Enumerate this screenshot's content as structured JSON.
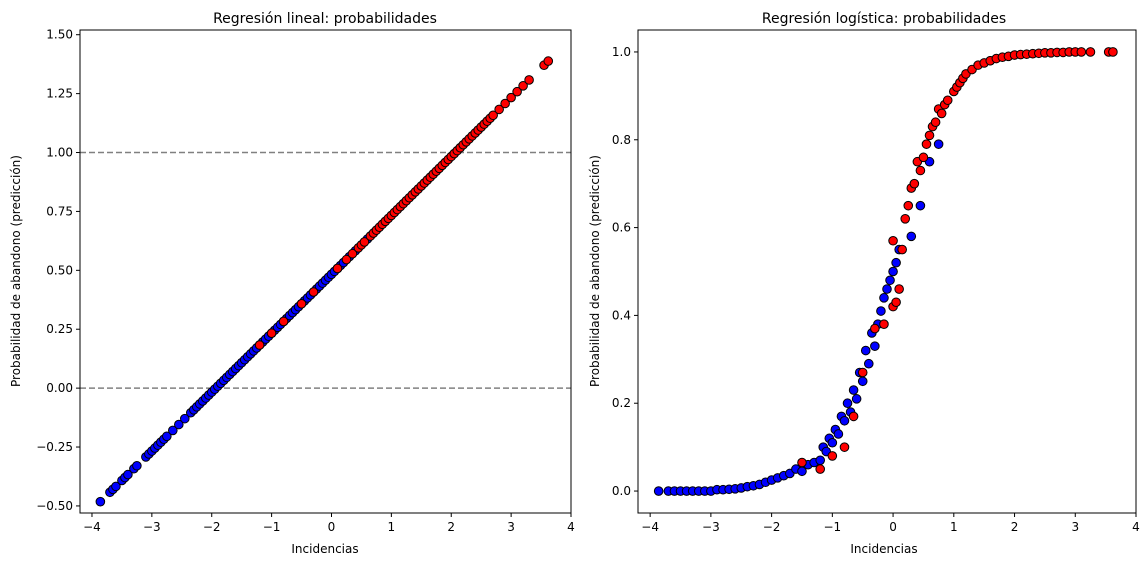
{
  "chart_data": [
    {
      "type": "scatter",
      "title": "Regresión lineal: probabilidades",
      "xlabel": "Incidencias",
      "ylabel": "Probabilidad de abandono (predicción)",
      "xlim": [
        -4.2,
        4.0
      ],
      "ylim": [
        -0.53,
        1.52
      ],
      "xticks": [
        -4,
        -3,
        -2,
        -1,
        0,
        1,
        2,
        3,
        4
      ],
      "xtick_labels": [
        "−4",
        "−3",
        "−2",
        "−1",
        "0",
        "1",
        "2",
        "3",
        "4"
      ],
      "yticks": [
        -0.5,
        -0.25,
        0.0,
        0.25,
        0.5,
        0.75,
        1.0,
        1.25,
        1.5
      ],
      "ytick_labels": [
        "−0.50",
        "−0.25",
        "0.00",
        "0.25",
        "0.50",
        "0.75",
        "1.00",
        "1.25",
        "1.50"
      ],
      "reference_lines_y": [
        0.0,
        1.0
      ],
      "model": {
        "intercept": 0.483,
        "slope": 0.25
      },
      "grid": false,
      "colors": {
        "red": "#ff0000",
        "blue": "#0000ff",
        "edge": "#000000",
        "reference": "#808080"
      },
      "series": [
        {
          "color": "blue",
          "x": [
            -3.86,
            -3.7,
            -3.65,
            -3.6,
            -3.5,
            -3.45,
            -3.4,
            -3.3,
            -3.25,
            -3.1,
            -3.05,
            -3.0,
            -2.95,
            -2.9,
            -2.85,
            -2.8,
            -2.75,
            -2.65,
            -2.55,
            -2.45,
            -2.35,
            -2.3,
            -2.25,
            -2.2,
            -2.15,
            -2.1,
            -2.05,
            -2.0,
            -1.95,
            -1.9,
            -1.85,
            -1.8,
            -1.75,
            -1.7,
            -1.65,
            -1.6,
            -1.55,
            -1.5,
            -1.45,
            -1.4,
            -1.35,
            -1.3,
            -1.25,
            -1.2,
            -1.15,
            -1.1,
            -1.05,
            -1.0,
            -0.95,
            -0.9,
            -0.85,
            -0.8,
            -0.75,
            -0.7,
            -0.65,
            -0.6,
            -0.55,
            -0.5,
            -0.45,
            -0.4,
            -0.35,
            -0.3,
            -0.25,
            -0.2,
            -0.15,
            -0.1,
            -0.05,
            0.0,
            0.05,
            0.1,
            0.15,
            0.2,
            0.3,
            0.4,
            0.6
          ]
        },
        {
          "color": "red",
          "x": [
            -1.2,
            -1.0,
            -0.8,
            -0.5,
            -0.3,
            0.1,
            0.25,
            0.35,
            0.45,
            0.5,
            0.55,
            0.65,
            0.7,
            0.75,
            0.8,
            0.85,
            0.9,
            0.95,
            1.0,
            1.05,
            1.1,
            1.15,
            1.2,
            1.25,
            1.3,
            1.35,
            1.4,
            1.45,
            1.5,
            1.55,
            1.6,
            1.65,
            1.7,
            1.75,
            1.8,
            1.85,
            1.9,
            1.95,
            2.0,
            2.05,
            2.1,
            2.15,
            2.2,
            2.25,
            2.3,
            2.35,
            2.4,
            2.45,
            2.5,
            2.55,
            2.6,
            2.65,
            2.7,
            2.8,
            2.9,
            3.0,
            3.1,
            3.2,
            3.3,
            3.55,
            3.62
          ]
        }
      ]
    },
    {
      "type": "scatter",
      "title": "Regresión logística: probabilidades",
      "xlabel": "Incidencias",
      "ylabel": "Probabilidad de abandono (predicción)",
      "xlim": [
        -4.2,
        4.0
      ],
      "ylim": [
        -0.05,
        1.05
      ],
      "xticks": [
        -4,
        -3,
        -2,
        -1,
        0,
        1,
        2,
        3,
        4
      ],
      "xtick_labels": [
        "−4",
        "−3",
        "−2",
        "−1",
        "0",
        "1",
        "2",
        "3",
        "4"
      ],
      "yticks": [
        0.0,
        0.2,
        0.4,
        0.6,
        0.8,
        1.0
      ],
      "ytick_labels": [
        "0.0",
        "0.2",
        "0.4",
        "0.6",
        "0.8",
        "1.0"
      ],
      "model": {
        "center": 0.0,
        "steepness": 2.6
      },
      "grid": false,
      "colors": {
        "red": "#ff0000",
        "blue": "#0000ff",
        "edge": "#000000"
      },
      "series": [
        {
          "color": "blue",
          "points": [
            [
              -3.86,
              0.0
            ],
            [
              -3.7,
              0.0
            ],
            [
              -3.6,
              0.0
            ],
            [
              -3.5,
              0.0
            ],
            [
              -3.4,
              0.0
            ],
            [
              -3.3,
              0.0
            ],
            [
              -3.2,
              0.0
            ],
            [
              -3.1,
              0.0
            ],
            [
              -3.0,
              0.0
            ],
            [
              -2.9,
              0.003
            ],
            [
              -2.8,
              0.003
            ],
            [
              -2.7,
              0.004
            ],
            [
              -2.6,
              0.005
            ],
            [
              -2.5,
              0.007
            ],
            [
              -2.4,
              0.01
            ],
            [
              -2.3,
              0.012
            ],
            [
              -2.2,
              0.015
            ],
            [
              -2.1,
              0.02
            ],
            [
              -2.0,
              0.025
            ],
            [
              -1.9,
              0.03
            ],
            [
              -1.8,
              0.035
            ],
            [
              -1.7,
              0.04
            ],
            [
              -1.6,
              0.05
            ],
            [
              -1.5,
              0.045
            ],
            [
              -1.4,
              0.06
            ],
            [
              -1.3,
              0.065
            ],
            [
              -1.2,
              0.07
            ],
            [
              -1.15,
              0.1
            ],
            [
              -1.1,
              0.09
            ],
            [
              -1.05,
              0.12
            ],
            [
              -1.0,
              0.11
            ],
            [
              -0.95,
              0.14
            ],
            [
              -0.9,
              0.13
            ],
            [
              -0.85,
              0.17
            ],
            [
              -0.8,
              0.16
            ],
            [
              -0.75,
              0.2
            ],
            [
              -0.7,
              0.18
            ],
            [
              -0.65,
              0.23
            ],
            [
              -0.6,
              0.21
            ],
            [
              -0.55,
              0.27
            ],
            [
              -0.5,
              0.25
            ],
            [
              -0.45,
              0.32
            ],
            [
              -0.4,
              0.29
            ],
            [
              -0.35,
              0.36
            ],
            [
              -0.3,
              0.33
            ],
            [
              -0.25,
              0.38
            ],
            [
              -0.2,
              0.41
            ],
            [
              -0.15,
              0.44
            ],
            [
              -0.1,
              0.46
            ],
            [
              -0.05,
              0.48
            ],
            [
              0.0,
              0.5
            ],
            [
              0.05,
              0.52
            ],
            [
              0.1,
              0.55
            ],
            [
              0.3,
              0.58
            ],
            [
              0.45,
              0.65
            ],
            [
              0.6,
              0.75
            ],
            [
              0.75,
              0.79
            ],
            [
              1.6,
              0.98
            ]
          ]
        },
        {
          "color": "red",
          "points": [
            [
              -1.5,
              0.065
            ],
            [
              -1.2,
              0.05
            ],
            [
              -1.0,
              0.08
            ],
            [
              -0.8,
              0.1
            ],
            [
              -0.65,
              0.17
            ],
            [
              -0.5,
              0.27
            ],
            [
              -0.3,
              0.37
            ],
            [
              -0.15,
              0.38
            ],
            [
              0.0,
              0.42
            ],
            [
              0.0,
              0.57
            ],
            [
              0.05,
              0.43
            ],
            [
              0.1,
              0.46
            ],
            [
              0.15,
              0.55
            ],
            [
              0.2,
              0.62
            ],
            [
              0.25,
              0.65
            ],
            [
              0.3,
              0.69
            ],
            [
              0.35,
              0.7
            ],
            [
              0.4,
              0.75
            ],
            [
              0.45,
              0.73
            ],
            [
              0.5,
              0.76
            ],
            [
              0.55,
              0.79
            ],
            [
              0.6,
              0.81
            ],
            [
              0.65,
              0.83
            ],
            [
              0.7,
              0.84
            ],
            [
              0.75,
              0.87
            ],
            [
              0.8,
              0.86
            ],
            [
              0.85,
              0.88
            ],
            [
              0.9,
              0.89
            ],
            [
              1.0,
              0.91
            ],
            [
              1.05,
              0.92
            ],
            [
              1.1,
              0.93
            ],
            [
              1.15,
              0.94
            ],
            [
              1.2,
              0.95
            ],
            [
              1.3,
              0.96
            ],
            [
              1.4,
              0.97
            ],
            [
              1.5,
              0.975
            ],
            [
              1.6,
              0.98
            ],
            [
              1.7,
              0.985
            ],
            [
              1.8,
              0.988
            ],
            [
              1.9,
              0.99
            ],
            [
              2.0,
              0.993
            ],
            [
              2.1,
              0.994
            ],
            [
              2.2,
              0.995
            ],
            [
              2.3,
              0.996
            ],
            [
              2.4,
              0.997
            ],
            [
              2.5,
              0.998
            ],
            [
              2.6,
              0.998
            ],
            [
              2.7,
              0.999
            ],
            [
              2.8,
              0.999
            ],
            [
              2.9,
              1.0
            ],
            [
              3.0,
              1.0
            ],
            [
              3.1,
              1.0
            ],
            [
              3.25,
              1.0
            ],
            [
              3.55,
              1.0
            ],
            [
              3.62,
              1.0
            ]
          ]
        }
      ]
    }
  ]
}
